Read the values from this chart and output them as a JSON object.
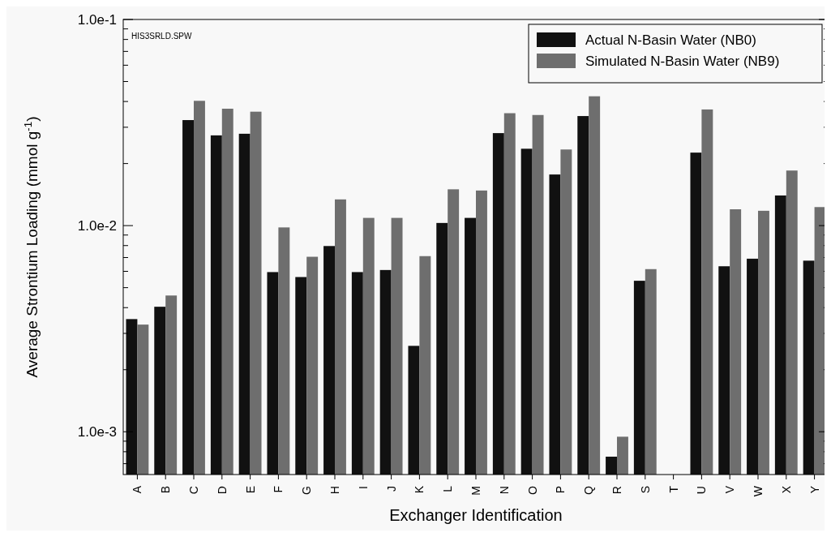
{
  "chart_data": {
    "type": "bar",
    "log": true,
    "xlabel": "Exchanger Identification",
    "ylabel": "Average Strontium Loading (mmol g$^{-1}$)",
    "categories": [
      "A",
      "B",
      "C",
      "D",
      "E",
      "F",
      "G",
      "H",
      "I",
      "J",
      "K",
      "L",
      "M",
      "N",
      "O",
      "P",
      "Q",
      "R",
      "S",
      "T",
      "U",
      "V",
      "W",
      "X",
      "Y"
    ],
    "series": [
      {
        "name": "Actual N-Basin Water (NB0)",
        "color": "#111111",
        "values": [
          0.00352,
          0.00404,
          0.0325,
          0.0274,
          0.0279,
          0.00595,
          0.00563,
          0.00796,
          0.00595,
          0.00609,
          0.00261,
          0.0103,
          0.0109,
          0.0281,
          0.0236,
          0.0177,
          0.034,
          0.000757,
          0.0054,
          null,
          0.0226,
          0.00635,
          0.00691,
          0.014,
          0.00676
        ]
      },
      {
        "name": "Simulated N-Basin Water (NB9)",
        "color": "#6e6e6e",
        "values": [
          0.00331,
          0.00458,
          0.0403,
          0.0369,
          0.0357,
          0.0098,
          0.00706,
          0.0134,
          0.0109,
          0.0109,
          0.00711,
          0.015,
          0.0148,
          0.0351,
          0.0344,
          0.0234,
          0.0424,
          0.000946,
          0.00615,
          null,
          0.0366,
          0.012,
          0.0118,
          0.0185,
          0.0123
        ]
      }
    ],
    "ylim": [
      0.00062,
      0.1
    ],
    "yticks": [
      {
        "value": 0.0007,
        "label": null
      },
      {
        "value": 0.0008,
        "label": null
      },
      {
        "value": 0.0009,
        "label": null
      },
      {
        "value": 0.001,
        "label": "1.0e-3"
      },
      {
        "value": 0.002,
        "label": null
      },
      {
        "value": 0.003,
        "label": null
      },
      {
        "value": 0.004,
        "label": null
      },
      {
        "value": 0.005,
        "label": null
      },
      {
        "value": 0.006,
        "label": null
      },
      {
        "value": 0.007,
        "label": null
      },
      {
        "value": 0.008,
        "label": null
      },
      {
        "value": 0.009,
        "label": null
      },
      {
        "value": 0.01,
        "label": "1.0e-2"
      },
      {
        "value": 0.02,
        "label": null
      },
      {
        "value": 0.03,
        "label": null
      },
      {
        "value": 0.04,
        "label": null
      },
      {
        "value": 0.05,
        "label": null
      },
      {
        "value": 0.06,
        "label": null
      },
      {
        "value": 0.07,
        "label": null
      },
      {
        "value": 0.08,
        "label": null
      },
      {
        "value": 0.09,
        "label": null
      },
      {
        "value": 0.1,
        "label": "1.0e-1"
      }
    ],
    "legend": "top right",
    "annotations": [
      "HIS3SRLD.SPW"
    ]
  }
}
